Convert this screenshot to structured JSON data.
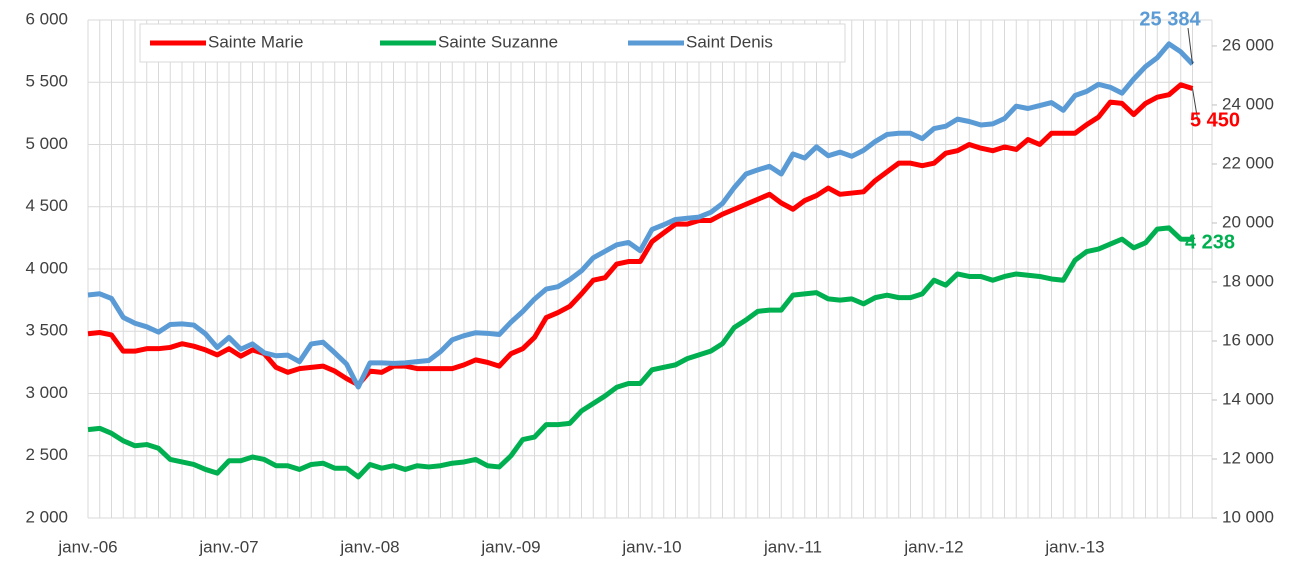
{
  "chart_data": {
    "type": "line",
    "categories": [
      "janv.-06",
      null,
      null,
      null,
      null,
      null,
      null,
      null,
      null,
      null,
      null,
      null,
      "janv.-07",
      null,
      null,
      null,
      null,
      null,
      null,
      null,
      null,
      null,
      null,
      null,
      "janv.-08",
      null,
      null,
      null,
      null,
      null,
      null,
      null,
      null,
      null,
      null,
      null,
      "janv.-09",
      null,
      null,
      null,
      null,
      null,
      null,
      null,
      null,
      null,
      null,
      null,
      "janv.-10",
      null,
      null,
      null,
      null,
      null,
      null,
      null,
      null,
      null,
      null,
      null,
      "janv.-11",
      null,
      null,
      null,
      null,
      null,
      null,
      null,
      null,
      null,
      null,
      null,
      "janv.-12",
      null,
      null,
      null,
      null,
      null,
      null,
      null,
      null,
      null,
      null,
      null,
      "janv.-13",
      null,
      null,
      null,
      null,
      null,
      null,
      null,
      null,
      null,
      null
    ],
    "series": [
      {
        "name": "Sainte Marie",
        "color": "#ff0000",
        "axis": "y",
        "values": [
          3480,
          3490,
          3470,
          3340,
          3340,
          3360,
          3360,
          3370,
          3400,
          3380,
          3350,
          3310,
          3360,
          3300,
          3350,
          3320,
          3210,
          3170,
          3200,
          3210,
          3220,
          3180,
          3120,
          3070,
          3180,
          3170,
          3220,
          3220,
          3200,
          3200,
          3200,
          3200,
          3230,
          3270,
          3250,
          3220,
          3320,
          3360,
          3450,
          3610,
          3650,
          3700,
          3800,
          3910,
          3930,
          4040,
          4060,
          4060,
          4220,
          4290,
          4360,
          4360,
          4390,
          4390,
          4440,
          4480,
          4520,
          4560,
          4600,
          4530,
          4480,
          4550,
          4590,
          4650,
          4600,
          4610,
          4620,
          4710,
          4780,
          4850,
          4850,
          4830,
          4850,
          4930,
          4950,
          5000,
          4970,
          4950,
          4980,
          4960,
          5040,
          5000,
          5090,
          5090,
          5090,
          5160,
          5220,
          5340,
          5330,
          5240,
          5330,
          5380,
          5400,
          5480,
          5450
        ],
        "value_labels": [
          null,
          null,
          null,
          null,
          null,
          null,
          null,
          null,
          null,
          null,
          null,
          null,
          null,
          null,
          null,
          null,
          null,
          null,
          null,
          null,
          null,
          null,
          null,
          null,
          null,
          null,
          null,
          null,
          null,
          null,
          null,
          null,
          null,
          null,
          null,
          null,
          null,
          null,
          null,
          null,
          null,
          null,
          null,
          null,
          null,
          null,
          null,
          null,
          null,
          null,
          null,
          null,
          null,
          null,
          null,
          null,
          null,
          null,
          null,
          null,
          null,
          null,
          null,
          null,
          null,
          null,
          null,
          null,
          null,
          null,
          null,
          null,
          null,
          null,
          null,
          null,
          null,
          null,
          null,
          null,
          null,
          null,
          null,
          null,
          null,
          null,
          null,
          null,
          null,
          null,
          null,
          null,
          null,
          null,
          "5 450"
        ]
      },
      {
        "name": "Sainte Suzanne",
        "color": "#00b050",
        "axis": "y",
        "values": [
          2710,
          2720,
          2680,
          2620,
          2580,
          2590,
          2560,
          2470,
          2450,
          2430,
          2390,
          2360,
          2460,
          2460,
          2490,
          2470,
          2420,
          2420,
          2390,
          2430,
          2440,
          2400,
          2400,
          2330,
          2430,
          2400,
          2420,
          2390,
          2420,
          2410,
          2420,
          2440,
          2450,
          2470,
          2420,
          2410,
          2500,
          2630,
          2650,
          2750,
          2750,
          2760,
          2860,
          2920,
          2980,
          3050,
          3080,
          3080,
          3190,
          3210,
          3230,
          3280,
          3310,
          3340,
          3400,
          3530,
          3590,
          3660,
          3670,
          3670,
          3790,
          3800,
          3810,
          3760,
          3750,
          3760,
          3720,
          3770,
          3790,
          3770,
          3770,
          3800,
          3910,
          3870,
          3960,
          3940,
          3940,
          3910,
          3940,
          3960,
          3950,
          3940,
          3920,
          3910,
          4070,
          4140,
          4160,
          4200,
          4240,
          4170,
          4210,
          4320,
          4330,
          4240,
          4238
        ],
        "value_labels": [
          null,
          null,
          null,
          null,
          null,
          null,
          null,
          null,
          null,
          null,
          null,
          null,
          null,
          null,
          null,
          null,
          null,
          null,
          null,
          null,
          null,
          null,
          null,
          null,
          null,
          null,
          null,
          null,
          null,
          null,
          null,
          null,
          null,
          null,
          null,
          null,
          null,
          null,
          null,
          null,
          null,
          null,
          null,
          null,
          null,
          null,
          null,
          null,
          null,
          null,
          null,
          null,
          null,
          null,
          null,
          null,
          null,
          null,
          null,
          null,
          null,
          null,
          null,
          null,
          null,
          null,
          null,
          null,
          null,
          null,
          null,
          null,
          null,
          null,
          null,
          null,
          null,
          null,
          null,
          null,
          null,
          null,
          null,
          null,
          null,
          null,
          null,
          null,
          null,
          null,
          null,
          null,
          null,
          null,
          "4 238"
        ]
      },
      {
        "name": "Saint Denis",
        "color": "#5b9bd5",
        "axis": "y2",
        "values": [
          17560,
          17600,
          17440,
          16800,
          16600,
          16480,
          16300,
          16560,
          16580,
          16540,
          16240,
          15780,
          16120,
          15720,
          15900,
          15600,
          15500,
          15520,
          15300,
          15900,
          15960,
          15600,
          15220,
          14440,
          15260,
          15260,
          15240,
          15260,
          15300,
          15340,
          15640,
          16040,
          16180,
          16280,
          16260,
          16220,
          16640,
          17000,
          17420,
          17760,
          17840,
          18080,
          18380,
          18820,
          19040,
          19260,
          19340,
          19060,
          19780,
          19940,
          20120,
          20160,
          20200,
          20360,
          20660,
          21200,
          21660,
          21800,
          21920,
          21660,
          22340,
          22200,
          22580,
          22280,
          22400,
          22260,
          22460,
          22760,
          23000,
          23040,
          23040,
          22860,
          23200,
          23280,
          23520,
          23440,
          23320,
          23360,
          23540,
          23960,
          23880,
          23980,
          24080,
          23820,
          24320,
          24460,
          24700,
          24600,
          24400,
          24880,
          25300,
          25600,
          26070,
          25800,
          25384
        ],
        "value_labels": [
          null,
          null,
          null,
          null,
          null,
          null,
          null,
          null,
          null,
          null,
          null,
          null,
          null,
          null,
          null,
          null,
          null,
          null,
          null,
          null,
          null,
          null,
          null,
          null,
          null,
          null,
          null,
          null,
          null,
          null,
          null,
          null,
          null,
          null,
          null,
          null,
          null,
          null,
          null,
          null,
          null,
          null,
          null,
          null,
          null,
          null,
          null,
          null,
          null,
          null,
          null,
          null,
          null,
          null,
          null,
          null,
          null,
          null,
          null,
          null,
          null,
          null,
          null,
          null,
          null,
          null,
          null,
          null,
          null,
          null,
          null,
          null,
          null,
          null,
          null,
          null,
          null,
          null,
          null,
          null,
          null,
          null,
          null,
          null,
          null,
          null,
          null,
          null,
          null,
          null,
          null,
          null,
          null,
          null,
          "25 384"
        ]
      }
    ],
    "ylim": [
      2000,
      6000
    ],
    "yticks": [
      {
        "value": 2000,
        "label": "2 000"
      },
      {
        "value": 2500,
        "label": "2 500"
      },
      {
        "value": 3000,
        "label": "3 000"
      },
      {
        "value": 3500,
        "label": "3 500"
      },
      {
        "value": 4000,
        "label": "4 000"
      },
      {
        "value": 4500,
        "label": "4 500"
      },
      {
        "value": 5000,
        "label": "5 000"
      },
      {
        "value": 5500,
        "label": "5 500"
      },
      {
        "value": 6000,
        "label": "6 000"
      }
    ],
    "y2lim": [
      10000,
      26880
    ],
    "y2ticks": [
      {
        "value": 10000,
        "label": "10 000"
      },
      {
        "value": 12000,
        "label": "12 000"
      },
      {
        "value": 14000,
        "label": "14 000"
      },
      {
        "value": 16000,
        "label": "16 000"
      },
      {
        "value": 18000,
        "label": "18 000"
      },
      {
        "value": 20000,
        "label": "20 000"
      },
      {
        "value": 22000,
        "label": "22 000"
      },
      {
        "value": 24000,
        "label": "24 000"
      },
      {
        "value": 26000,
        "label": "26 000"
      }
    ],
    "grid": true,
    "legend": "top"
  }
}
